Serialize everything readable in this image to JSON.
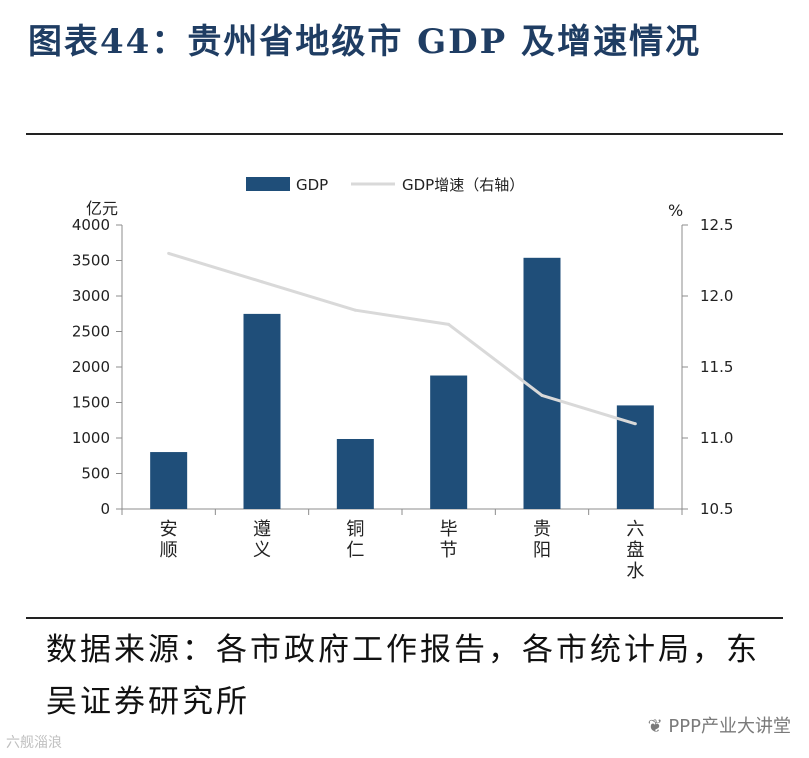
{
  "title": "图表44：贵州省地级市 GDP 及增速情况",
  "chart_data": {
    "type": "bar+line",
    "categories": [
      "安顺",
      "遵义",
      "铜仁",
      "毕节",
      "贵阳",
      "六盘水"
    ],
    "category_display": [
      [
        "安",
        "顺"
      ],
      [
        "遵",
        "义"
      ],
      [
        "铜",
        "仁"
      ],
      [
        "毕",
        "节"
      ],
      [
        "贵",
        "阳"
      ],
      [
        "六",
        "盘",
        "水"
      ]
    ],
    "series": [
      {
        "name": "GDP",
        "type": "bar",
        "axis": "left",
        "color": "#1f4e79",
        "values": [
          802,
          2748,
          986,
          1880,
          3538,
          1459
        ]
      },
      {
        "name": "GDP增速（右轴）",
        "type": "line",
        "axis": "right",
        "color": "#d9d9d9",
        "values": [
          12.3,
          12.1,
          11.9,
          11.8,
          11.3,
          11.1
        ]
      }
    ],
    "left_axis": {
      "unit": "亿元",
      "min": 0,
      "max": 4000,
      "ticks": [
        "0",
        "500",
        "1000",
        "1500",
        "2000",
        "2500",
        "3000",
        "3500",
        "4000"
      ]
    },
    "right_axis": {
      "unit": "%",
      "min": 10.5,
      "max": 12.5,
      "ticks": [
        "10.5",
        "11.0",
        "11.5",
        "12.0",
        "12.5"
      ]
    },
    "legend": {
      "position": "top-center",
      "gdp_label": "GDP",
      "growth_label": "GDP增速（右轴）"
    }
  },
  "source_text": "数据来源：各市政府工作报告，各市统计局，东吴证券研究所",
  "watermark": "PPP产业大讲堂",
  "watermark_left": "六舰淄浪"
}
